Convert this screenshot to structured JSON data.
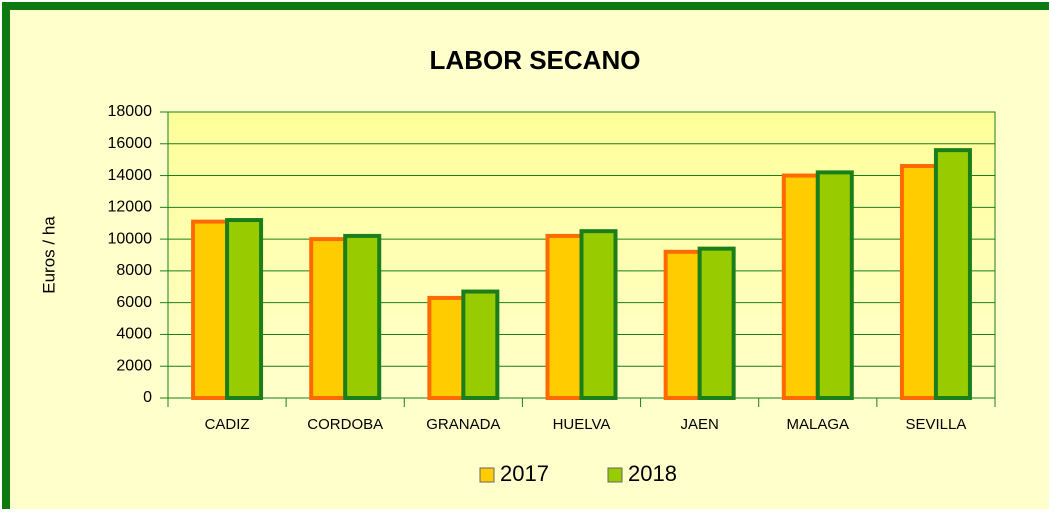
{
  "chart_data": {
    "type": "bar",
    "title": "LABOR SECANO",
    "y_label": "Euros / ha",
    "categories": [
      "CADIZ",
      "CORDOBA",
      "GRANADA",
      "HUELVA",
      "JAEN",
      "MALAGA",
      "SEVILLA"
    ],
    "series": [
      {
        "name": "2017",
        "color": "#ffcc00",
        "edge_color": "#ff6a00",
        "values": [
          11100,
          10000,
          6300,
          10200,
          9200,
          14000,
          14600
        ]
      },
      {
        "name": "2018",
        "color": "#99cc00",
        "edge_color": "#1a7f1a",
        "values": [
          11200,
          10200,
          6700,
          10500,
          9400,
          14200,
          15600
        ]
      }
    ],
    "ylim": [
      0,
      18000
    ],
    "yticks": [
      0,
      2000,
      4000,
      6000,
      8000,
      10000,
      12000,
      14000,
      16000,
      18000
    ],
    "grid": true,
    "legend": "bottom"
  }
}
